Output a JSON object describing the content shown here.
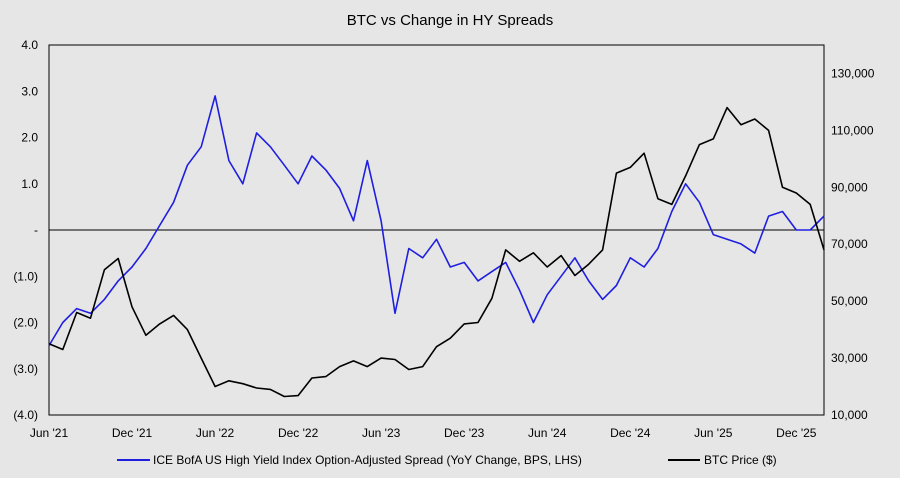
{
  "chart_data": {
    "type": "line",
    "title": "BTC vs Change in HY Spreads",
    "background": "#e6e6e6",
    "x_tick_labels": [
      "Jun '21",
      "Dec '21",
      "Jun '22",
      "Dec '22",
      "Jun '23",
      "Dec '23",
      "Jun '24",
      "Dec '24",
      "Jun '25",
      "Dec '25"
    ],
    "x_tick_dates": [
      "2021-06",
      "2021-12",
      "2022-06",
      "2022-12",
      "2023-06",
      "2023-12",
      "2024-06",
      "2024-12",
      "2025-06",
      "2025-12"
    ],
    "x_range": [
      "2021-06",
      "2026-02"
    ],
    "left_axis": {
      "ylim": [
        -4.0,
        4.0
      ],
      "ticks": [
        4.0,
        3.0,
        2.0,
        1.0,
        0.0,
        -1.0,
        -2.0,
        -3.0,
        -4.0
      ],
      "tick_labels": [
        "4.0",
        "3.0",
        "2.0",
        "1.0",
        "-",
        "(1.0)",
        "(2.0)",
        "(3.0)",
        "(4.0)"
      ]
    },
    "right_axis": {
      "ylim": [
        10000,
        140000
      ],
      "ticks": [
        130000,
        110000,
        90000,
        70000,
        50000,
        30000,
        10000
      ],
      "tick_labels": [
        "130,000",
        "110,000",
        "90,000",
        "70,000",
        "50,000",
        "30,000",
        "10,000"
      ]
    },
    "zero_line": true,
    "legend_position": "bottom",
    "series": [
      {
        "name": "ICE BofA US High Yield Index Option-Adjusted Spread (YoY Change, BPS, LHS)",
        "color": "#1f1fe0",
        "axis": "left",
        "x": [
          "2021-06",
          "2021-07",
          "2021-08",
          "2021-09",
          "2021-10",
          "2021-11",
          "2021-12",
          "2022-01",
          "2022-02",
          "2022-03",
          "2022-04",
          "2022-05",
          "2022-06",
          "2022-07",
          "2022-08",
          "2022-09",
          "2022-10",
          "2022-11",
          "2022-12",
          "2023-01",
          "2023-02",
          "2023-03",
          "2023-04",
          "2023-05",
          "2023-06",
          "2023-07",
          "2023-08",
          "2023-09",
          "2023-10",
          "2023-11",
          "2023-12",
          "2024-01",
          "2024-02",
          "2024-03",
          "2024-04",
          "2024-05",
          "2024-06",
          "2024-07",
          "2024-08",
          "2024-09",
          "2024-10",
          "2024-11",
          "2024-12",
          "2025-01",
          "2025-02",
          "2025-03",
          "2025-04",
          "2025-05",
          "2025-06",
          "2025-07",
          "2025-08",
          "2025-09",
          "2025-10",
          "2025-11",
          "2025-12",
          "2026-01",
          "2026-02"
        ],
        "values": [
          -2.5,
          -2.0,
          -1.7,
          -1.8,
          -1.5,
          -1.1,
          -0.8,
          -0.4,
          0.1,
          0.6,
          1.4,
          1.8,
          2.9,
          1.5,
          1.0,
          2.1,
          1.8,
          1.4,
          1.0,
          1.6,
          1.3,
          0.9,
          0.2,
          1.5,
          0.2,
          -1.8,
          -0.4,
          -0.6,
          -0.2,
          -0.8,
          -0.7,
          -1.1,
          -0.9,
          -0.7,
          -1.3,
          -2.0,
          -1.4,
          -1.0,
          -0.6,
          -1.1,
          -1.5,
          -1.2,
          -0.6,
          -0.8,
          -0.4,
          0.4,
          1.0,
          0.6,
          -0.1,
          -0.2,
          -0.3,
          -0.5,
          0.3,
          0.4,
          0.0,
          0.0,
          0.3
        ]
      },
      {
        "name": "BTC Price ($)",
        "color": "#000000",
        "axis": "right",
        "x": [
          "2021-06",
          "2021-07",
          "2021-08",
          "2021-09",
          "2021-10",
          "2021-11",
          "2021-12",
          "2022-01",
          "2022-02",
          "2022-03",
          "2022-04",
          "2022-05",
          "2022-06",
          "2022-07",
          "2022-08",
          "2022-09",
          "2022-10",
          "2022-11",
          "2022-12",
          "2023-01",
          "2023-02",
          "2023-03",
          "2023-04",
          "2023-05",
          "2023-06",
          "2023-07",
          "2023-08",
          "2023-09",
          "2023-10",
          "2023-11",
          "2023-12",
          "2024-01",
          "2024-02",
          "2024-03",
          "2024-04",
          "2024-05",
          "2024-06",
          "2024-07",
          "2024-08",
          "2024-09",
          "2024-10",
          "2024-11",
          "2024-12",
          "2025-01",
          "2025-02",
          "2025-03",
          "2025-04",
          "2025-05",
          "2025-06",
          "2025-07",
          "2025-08",
          "2025-09",
          "2025-10",
          "2025-11",
          "2025-12",
          "2026-01",
          "2026-02"
        ],
        "values": [
          35000,
          33000,
          46000,
          44000,
          61000,
          65000,
          48000,
          38000,
          42000,
          45000,
          40000,
          30000,
          20000,
          22000,
          21000,
          19500,
          19000,
          16500,
          16800,
          23000,
          23500,
          27000,
          29000,
          27000,
          30000,
          29500,
          26000,
          27000,
          34000,
          37000,
          42000,
          42500,
          51000,
          68000,
          64000,
          67000,
          62000,
          66000,
          59000,
          63000,
          68000,
          95000,
          97000,
          102000,
          86000,
          84000,
          94000,
          105000,
          107000,
          118000,
          112000,
          114000,
          110000,
          90000,
          88000,
          84000,
          68000
        ]
      }
    ]
  }
}
